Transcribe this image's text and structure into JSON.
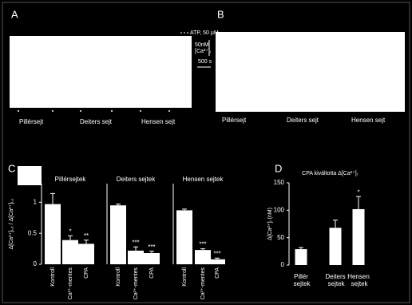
{
  "panel_a": {
    "label": "A",
    "stimulus": "ATP, 50 µM",
    "scale_y": "50nM",
    "scale_y_unit": "[Ca²⁺]ᵢ",
    "scale_x": "500 s",
    "cells": [
      "Pillérsejt",
      "Deiters sejt",
      "Hensen sejt"
    ]
  },
  "panel_b": {
    "label": "B",
    "cells": [
      "Pillérsejt",
      "Deiters sejt",
      "Hensen sejt"
    ]
  },
  "chart_data": [
    {
      "type": "bar",
      "panel_label": "C",
      "title": "Pillérsejtek",
      "y_label": "Δ[Ca²⁺]ᵢ,₂ / Δ[Ca²⁺]ᵢ,₁",
      "categories": [
        "Kontroll",
        "Ca²⁺-mentes",
        "CPA"
      ],
      "values": [
        0.97,
        0.39,
        0.33
      ],
      "errors": [
        0.17,
        0.07,
        0.06
      ],
      "annotations": [
        null,
        "*",
        "**"
      ],
      "color": "#ffffff",
      "ylim": [
        0,
        1.3
      ],
      "yticks": [
        0,
        0.5,
        1
      ]
    },
    {
      "type": "bar",
      "title": "Deiters sejtek",
      "categories": [
        "Kontroll",
        "Ca²⁺-mentes",
        "CPA"
      ],
      "values": [
        0.95,
        0.22,
        0.18
      ],
      "errors": [
        0.02,
        0.06,
        0.03
      ],
      "annotations": [
        null,
        "***",
        "***"
      ],
      "color": "#ffffff",
      "ylim": [
        0,
        1.3
      ]
    },
    {
      "type": "bar",
      "title": "Hensen sejtek",
      "categories": [
        "Kontroll",
        "Ca²⁺-mentes",
        "CPA"
      ],
      "values": [
        0.87,
        0.23,
        0.08
      ],
      "errors": [
        0.02,
        0.02,
        0.02
      ],
      "annotations": [
        null,
        "***",
        "***"
      ],
      "color": "#ffffff",
      "ylim": [
        0,
        1.3
      ]
    },
    {
      "type": "bar",
      "panel_label": "D",
      "title": "CPA kiváltotta Δ[Ca²⁺]ᵢ",
      "y_label": "Δ[Ca²⁺]ᵢ (nM)",
      "categories": [
        "Pillér sejtek",
        "Deiters sejtek",
        "Hensen sejtek"
      ],
      "values": [
        29,
        68,
        102
      ],
      "errors": [
        3,
        14,
        23
      ],
      "annotations": [
        null,
        null,
        "*"
      ],
      "color": "#ffffff",
      "ylim": [
        0,
        150
      ],
      "yticks": [
        0,
        50,
        100,
        150
      ]
    }
  ]
}
